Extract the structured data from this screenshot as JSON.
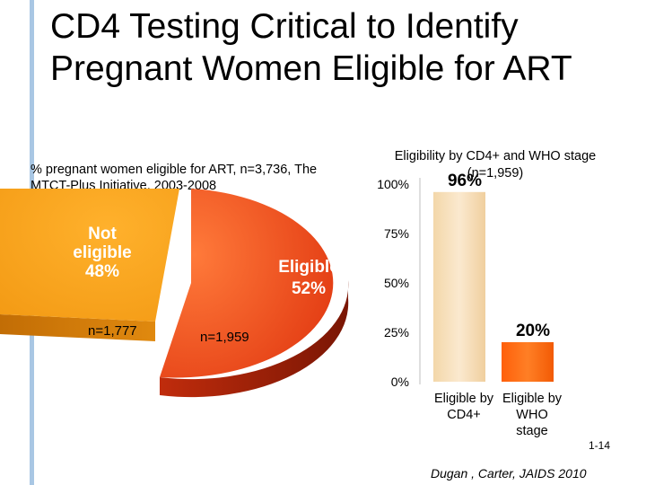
{
  "title": "CD4 Testing Critical to Identify Pregnant Women Eligible for ART",
  "slide_number": "1-14",
  "citation": "Dugan , Carter, JAIDS 2010",
  "chart_data": [
    {
      "type": "pie",
      "title": "% pregnant women eligible for ART, n=3,736, The MTCT-Plus Initiative, 2003-2008",
      "slices": [
        {
          "label": "Not eligible",
          "line1": "Not",
          "line2": "eligible",
          "value": 48,
          "value_label": "48%",
          "n_label": "n=1,777",
          "color": "#f7a21b"
        },
        {
          "label": "Eligible",
          "line1": "Eligible",
          "line2": "",
          "value": 52,
          "value_label": "52%",
          "n_label": "n=1,959",
          "color": "#e8461b"
        }
      ]
    },
    {
      "type": "bar",
      "title": "Eligibility by CD4+ and WHO stage",
      "subtitle": "(n=1,959)",
      "categories": [
        "Eligible by CD4+",
        "Eligible by WHO stage"
      ],
      "category_lines": [
        [
          "Eligible by",
          "CD4+"
        ],
        [
          "Eligible by",
          "WHO",
          "stage"
        ]
      ],
      "values": [
        96,
        20
      ],
      "value_labels": [
        "96%",
        "20%"
      ],
      "colors": [
        "#f5d9b0",
        "#ff6a10"
      ],
      "yticks": [
        "0%",
        "25%",
        "50%",
        "75%",
        "100%"
      ],
      "ylim": [
        0,
        100
      ]
    }
  ]
}
